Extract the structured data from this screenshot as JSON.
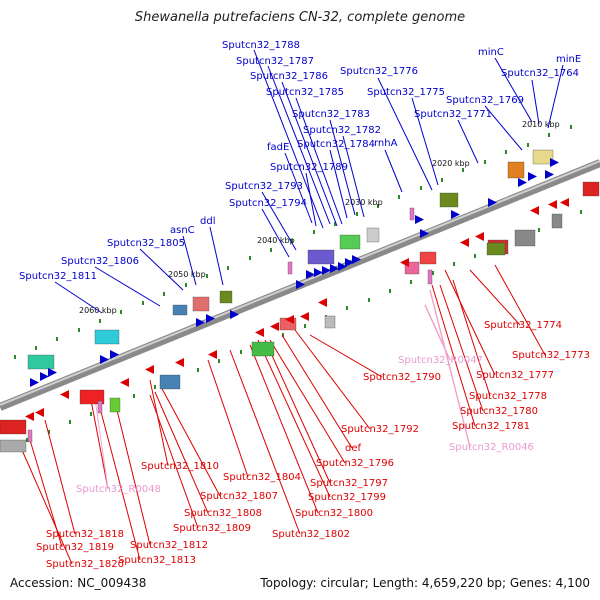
{
  "title": "Shewanella putrefaciens CN-32, complete genome",
  "footer": {
    "accession": "Accession: NC_009438",
    "topology": "Topology: circular; Length: 4,659,220 bp; Genes: 4,100"
  },
  "kbp_labels": [
    "2010 kbp",
    "2020 kbp",
    "2030 kbp",
    "2040 kbp",
    "2050 kbp",
    "2060 kbp"
  ],
  "colors": {
    "forward": "#0000cc",
    "reverse": "#dd0000",
    "rna": "#e377c2",
    "backbone": "#777777"
  },
  "forward_genes": [
    "minC",
    "minE",
    "Sputcn32_1764",
    "Sputcn32_1769",
    "Sputcn32_1771",
    "Sputcn32_1775",
    "Sputcn32_1776",
    "rnhA",
    "Sputcn32_1782",
    "Sputcn32_1783",
    "Sputcn32_1784",
    "Sputcn32_1785",
    "Sputcn32_1786",
    "Sputcn32_1787",
    "Sputcn32_1788",
    "fadE",
    "Sputcn32_1789",
    "Sputcn32_1793",
    "Sputcn32_1794",
    "ddl",
    "asnC",
    "Sputcn32_1805",
    "Sputcn32_1806",
    "Sputcn32_1811"
  ],
  "reverse_genes": [
    "Sputcn32_1774",
    "Sputcn32_1773",
    "Sputcn32_R0047",
    "Sputcn32_1777",
    "Sputcn32_1790",
    "Sputcn32_1778",
    "Sputcn32_1780",
    "Sputcn32_1781",
    "Sputcn32_R0046",
    "Sputcn32_1792",
    "def",
    "Sputcn32_1796",
    "Sputcn32_1797",
    "Sputcn32_1799",
    "Sputcn32_1800",
    "Sputcn32_1802",
    "Sputcn32_1804",
    "Sputcn32_1810",
    "Sputcn32_1807",
    "Sputcn32_1808",
    "Sputcn32_1809",
    "Sputcn32_R0048",
    "Sputcn32_1812",
    "Sputcn32_1813",
    "Sputcn32_1818",
    "Sputcn32_1819",
    "Sputcn32_1820"
  ]
}
